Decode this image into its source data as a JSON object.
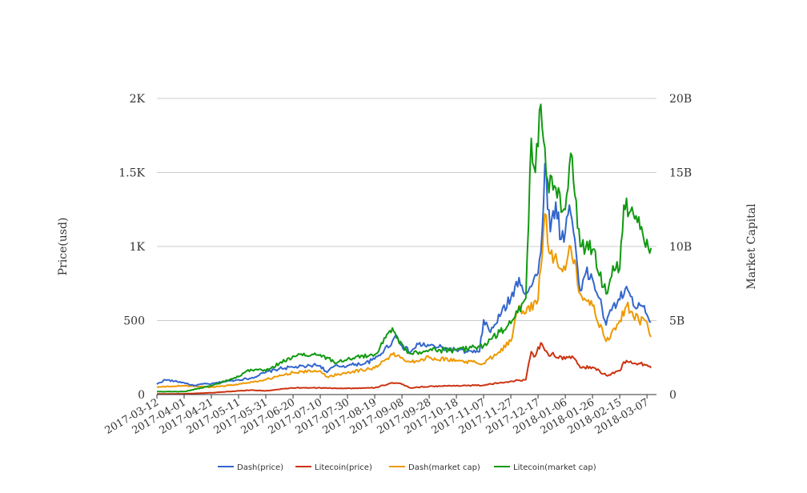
{
  "chart_data": {
    "type": "line",
    "title": "",
    "y_left_label": "Price(usd)",
    "y_right_label": "Market Capital",
    "y_left_ticks": [
      "0",
      "500",
      "1K",
      "1.5K",
      "2K"
    ],
    "y_right_ticks": [
      "0",
      "5B",
      "10B",
      "15B",
      "20B"
    ],
    "ylim_left": [
      0,
      2000
    ],
    "ylim_right": [
      0,
      20000000000
    ],
    "x_ticks": [
      "2017-03-12",
      "2017-04-01",
      "2017-04-21",
      "2017-05-11",
      "2017-05-31",
      "2017-06-20",
      "2017-07-10",
      "2017-07-30",
      "2017-08-19",
      "2017-09-08",
      "2017-09-28",
      "2017-10-18",
      "2017-11-07",
      "2017-11-27",
      "2017-12-17",
      "2018-01-06",
      "2018-01-26",
      "2018-02-15",
      "2018-03-07"
    ],
    "xlim": [
      "2017-03-12",
      "2018-03-14"
    ],
    "grid": true,
    "legend_position": "bottom",
    "series": [
      {
        "name": "Dash(price)",
        "axis": "left",
        "color": "#3366cc",
        "points": [
          [
            "2017-03-12",
            70
          ],
          [
            "2017-03-18",
            100
          ],
          [
            "2017-03-25",
            90
          ],
          [
            "2017-04-01",
            80
          ],
          [
            "2017-04-08",
            60
          ],
          [
            "2017-04-15",
            72
          ],
          [
            "2017-04-21",
            72
          ],
          [
            "2017-05-01",
            88
          ],
          [
            "2017-05-11",
            100
          ],
          [
            "2017-05-20",
            110
          ],
          [
            "2017-05-31",
            150
          ],
          [
            "2017-06-10",
            175
          ],
          [
            "2017-06-20",
            185
          ],
          [
            "2017-06-30",
            190
          ],
          [
            "2017-07-05",
            200
          ],
          [
            "2017-07-10",
            195
          ],
          [
            "2017-07-15",
            150
          ],
          [
            "2017-07-20",
            190
          ],
          [
            "2017-07-30",
            195
          ],
          [
            "2017-08-05",
            205
          ],
          [
            "2017-08-12",
            210
          ],
          [
            "2017-08-19",
            240
          ],
          [
            "2017-08-26",
            300
          ],
          [
            "2017-09-01",
            360
          ],
          [
            "2017-09-04",
            400
          ],
          [
            "2017-09-08",
            330
          ],
          [
            "2017-09-14",
            285
          ],
          [
            "2017-09-20",
            340
          ],
          [
            "2017-09-28",
            330
          ],
          [
            "2017-10-05",
            320
          ],
          [
            "2017-10-12",
            305
          ],
          [
            "2017-10-18",
            300
          ],
          [
            "2017-10-25",
            290
          ],
          [
            "2017-11-01",
            285
          ],
          [
            "2017-11-04",
            290
          ],
          [
            "2017-11-07",
            505
          ],
          [
            "2017-11-12",
            420
          ],
          [
            "2017-11-20",
            550
          ],
          [
            "2017-11-27",
            650
          ],
          [
            "2017-12-03",
            790
          ],
          [
            "2017-12-08",
            680
          ],
          [
            "2017-12-13",
            750
          ],
          [
            "2017-12-17",
            820
          ],
          [
            "2017-12-20",
            1100
          ],
          [
            "2017-12-22",
            1560
          ],
          [
            "2017-12-26",
            1100
          ],
          [
            "2017-12-30",
            1300
          ],
          [
            "2018-01-03",
            1050
          ],
          [
            "2018-01-06",
            1100
          ],
          [
            "2018-01-09",
            1280
          ],
          [
            "2018-01-13",
            1050
          ],
          [
            "2018-01-17",
            700
          ],
          [
            "2018-01-21",
            820
          ],
          [
            "2018-01-26",
            780
          ],
          [
            "2018-01-31",
            650
          ],
          [
            "2018-02-05",
            470
          ],
          [
            "2018-02-10",
            600
          ],
          [
            "2018-02-15",
            640
          ],
          [
            "2018-02-20",
            730
          ],
          [
            "2018-02-25",
            600
          ],
          [
            "2018-03-01",
            620
          ],
          [
            "2018-03-05",
            600
          ],
          [
            "2018-03-07",
            540
          ],
          [
            "2018-03-10",
            490
          ]
        ]
      },
      {
        "name": "Litecoin(price)",
        "axis": "left",
        "color": "#cc3311",
        "points": [
          [
            "2017-03-12",
            4
          ],
          [
            "2017-04-01",
            5
          ],
          [
            "2017-04-21",
            12
          ],
          [
            "2017-05-11",
            25
          ],
          [
            "2017-05-20",
            30
          ],
          [
            "2017-05-31",
            25
          ],
          [
            "2017-06-20",
            45
          ],
          [
            "2017-07-10",
            45
          ],
          [
            "2017-07-30",
            42
          ],
          [
            "2017-08-19",
            45
          ],
          [
            "2017-09-01",
            80
          ],
          [
            "2017-09-08",
            70
          ],
          [
            "2017-09-14",
            45
          ],
          [
            "2017-09-28",
            55
          ],
          [
            "2017-10-18",
            60
          ],
          [
            "2017-11-07",
            63
          ],
          [
            "2017-11-27",
            90
          ],
          [
            "2017-12-08",
            100
          ],
          [
            "2017-12-12",
            290
          ],
          [
            "2017-12-15",
            260
          ],
          [
            "2017-12-19",
            350
          ],
          [
            "2017-12-24",
            280
          ],
          [
            "2018-01-06",
            240
          ],
          [
            "2018-01-12",
            250
          ],
          [
            "2018-01-18",
            180
          ],
          [
            "2018-01-26",
            185
          ],
          [
            "2018-02-05",
            130
          ],
          [
            "2018-02-15",
            160
          ],
          [
            "2018-02-18",
            220
          ],
          [
            "2018-03-01",
            210
          ],
          [
            "2018-03-07",
            200
          ],
          [
            "2018-03-10",
            180
          ]
        ]
      },
      {
        "name": "Dash(market cap)",
        "axis": "right",
        "color": "#ee9900",
        "points": [
          [
            "2017-03-12",
            500000000
          ],
          [
            "2017-04-01",
            600000000
          ],
          [
            "2017-04-21",
            500000000
          ],
          [
            "2017-05-11",
            700000000
          ],
          [
            "2017-05-31",
            1000000000
          ],
          [
            "2017-06-20",
            1500000000
          ],
          [
            "2017-07-10",
            1600000000
          ],
          [
            "2017-07-15",
            1200000000
          ],
          [
            "2017-07-30",
            1500000000
          ],
          [
            "2017-08-19",
            1800000000
          ],
          [
            "2017-09-01",
            2700000000
          ],
          [
            "2017-09-08",
            2500000000
          ],
          [
            "2017-09-14",
            2200000000
          ],
          [
            "2017-09-28",
            2500000000
          ],
          [
            "2017-10-18",
            2300000000
          ],
          [
            "2017-11-07",
            2100000000
          ],
          [
            "2017-11-27",
            3600000000
          ],
          [
            "2017-12-03",
            6000000000
          ],
          [
            "2017-12-08",
            5500000000
          ],
          [
            "2017-12-17",
            6400000000
          ],
          [
            "2017-12-22",
            12200000000
          ],
          [
            "2017-12-26",
            9500000000
          ],
          [
            "2018-01-06",
            8400000000
          ],
          [
            "2018-01-10",
            10000000000
          ],
          [
            "2018-01-17",
            6800000000
          ],
          [
            "2018-01-26",
            6000000000
          ],
          [
            "2018-02-05",
            3600000000
          ],
          [
            "2018-02-15",
            5000000000
          ],
          [
            "2018-02-20",
            6000000000
          ],
          [
            "2018-03-01",
            5000000000
          ],
          [
            "2018-03-07",
            4900000000
          ],
          [
            "2018-03-10",
            3900000000
          ]
        ]
      },
      {
        "name": "Litecoin(market cap)",
        "axis": "right",
        "color": "#119911",
        "points": [
          [
            "2017-03-12",
            200000000
          ],
          [
            "2017-04-01",
            200000000
          ],
          [
            "2017-04-21",
            600000000
          ],
          [
            "2017-05-11",
            1200000000
          ],
          [
            "2017-05-20",
            1700000000
          ],
          [
            "2017-05-31",
            1600000000
          ],
          [
            "2017-06-20",
            2600000000
          ],
          [
            "2017-07-10",
            2700000000
          ],
          [
            "2017-07-20",
            2200000000
          ],
          [
            "2017-07-30",
            2400000000
          ],
          [
            "2017-08-19",
            2700000000
          ],
          [
            "2017-09-01",
            4500000000
          ],
          [
            "2017-09-05",
            3800000000
          ],
          [
            "2017-09-12",
            2800000000
          ],
          [
            "2017-09-28",
            3000000000
          ],
          [
            "2017-10-18",
            3000000000
          ],
          [
            "2017-11-07",
            3300000000
          ],
          [
            "2017-11-27",
            4800000000
          ],
          [
            "2017-12-08",
            6500000000
          ],
          [
            "2017-12-12",
            17300000000
          ],
          [
            "2017-12-15",
            15000000000
          ],
          [
            "2017-12-19",
            19600000000
          ],
          [
            "2017-12-24",
            14500000000
          ],
          [
            "2018-01-06",
            12500000000
          ],
          [
            "2018-01-10",
            16300000000
          ],
          [
            "2018-01-17",
            10000000000
          ],
          [
            "2018-01-26",
            9800000000
          ],
          [
            "2018-02-05",
            6800000000
          ],
          [
            "2018-02-10",
            8700000000
          ],
          [
            "2018-02-15",
            8500000000
          ],
          [
            "2018-02-18",
            12800000000
          ],
          [
            "2018-02-25",
            12200000000
          ],
          [
            "2018-03-01",
            12000000000
          ],
          [
            "2018-03-05",
            10300000000
          ],
          [
            "2018-03-10",
            9900000000
          ]
        ]
      }
    ]
  }
}
